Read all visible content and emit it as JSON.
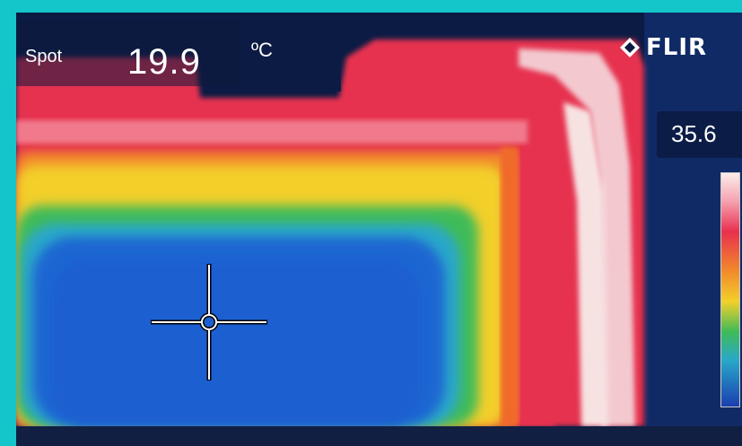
{
  "spot": {
    "label": "Spot",
    "value": "19.9",
    "unit": "ºC"
  },
  "brand": {
    "name": "FLIR",
    "icon": "flir-logo-icon"
  },
  "scale": {
    "max_value": "35.6"
  },
  "colors": {
    "frame": "#14c6c9",
    "cold": "#1a63cf",
    "warm": "#f0d12a",
    "hot": "#e8304f",
    "hottest": "#f6dcdc"
  },
  "crosshair": {
    "icon": "crosshair-icon"
  }
}
